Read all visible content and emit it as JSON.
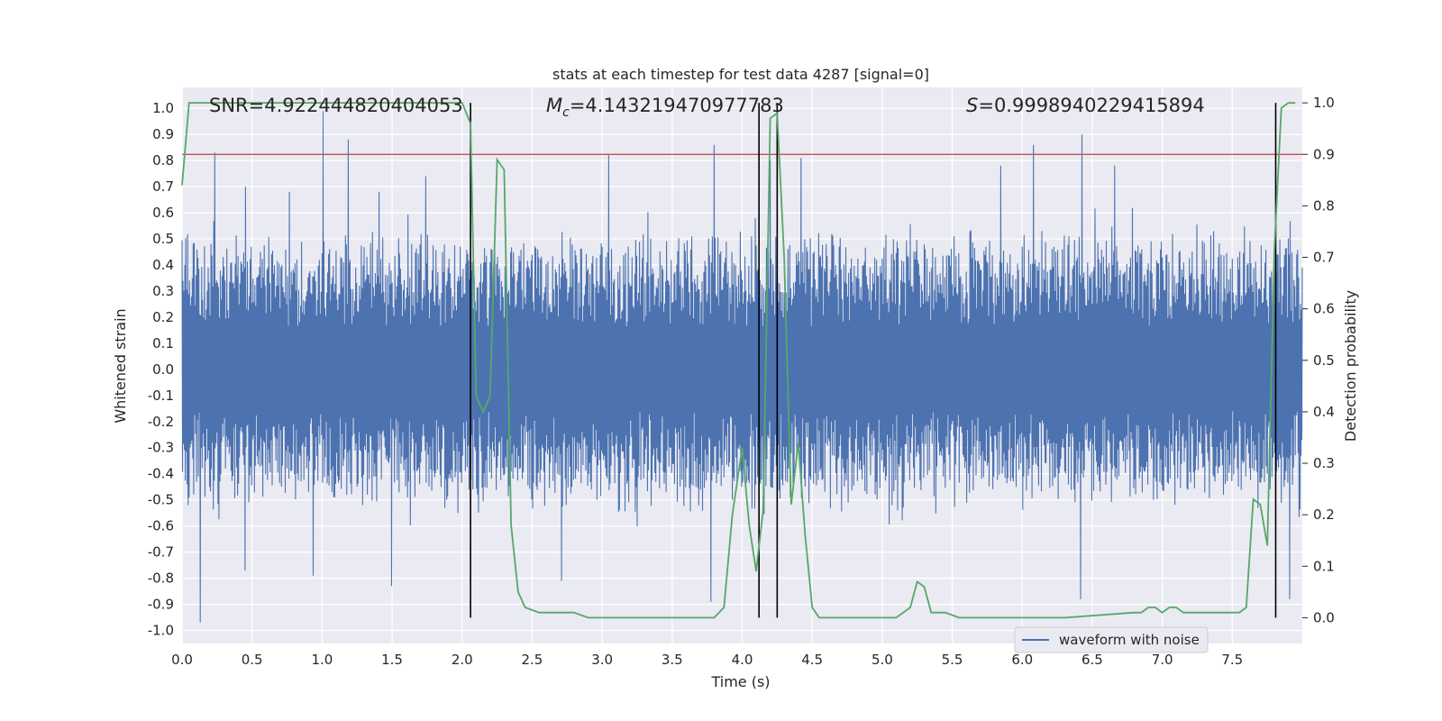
{
  "chart_data": {
    "type": "line",
    "title": "stats at each timestep for test data 4287 [signal=0]",
    "xlabel": "Time (s)",
    "ylabel_left": "Whitened strain",
    "ylabel_right": "Detection probability",
    "xlim": [
      0,
      8
    ],
    "ylim_left": [
      -1.05,
      1.08
    ],
    "ylim_right": [
      -0.05,
      1.03
    ],
    "x_ticks": [
      "0.0",
      "0.5",
      "1.0",
      "1.5",
      "2.0",
      "2.5",
      "3.0",
      "3.5",
      "4.0",
      "4.5",
      "5.0",
      "5.5",
      "6.0",
      "6.5",
      "7.0",
      "7.5"
    ],
    "y_left_ticks": [
      "1.0",
      "0.9",
      "0.8",
      "0.7",
      "0.6",
      "0.5",
      "0.4",
      "0.3",
      "0.2",
      "0.1",
      "0.0",
      "-0.1",
      "-0.2",
      "-0.3",
      "-0.4",
      "-0.5",
      "-0.6",
      "-0.7",
      "-0.8",
      "-0.9",
      "-1.0"
    ],
    "y_right_ticks": [
      "1.0",
      "0.9",
      "0.8",
      "0.7",
      "0.6",
      "0.5",
      "0.4",
      "0.3",
      "0.2",
      "0.1",
      "0.0"
    ],
    "annotations": {
      "snr": "SNR=4.922444820404053",
      "mc_symbol": "M",
      "mc_sub": "c",
      "mc_value": "=4.143219470977783",
      "s_symbol": "S",
      "s_value": "=0.9998940229415894"
    },
    "legend": [
      "waveform with noise"
    ],
    "legend_position": "lower right",
    "grid": true,
    "colors": {
      "background": "#EAEAF2",
      "waveform": "#4C72B0",
      "probability": "#55A868",
      "threshold": "#C44E52",
      "markers": "#000000"
    },
    "threshold_probability": 0.9,
    "vertical_markers_s": [
      2.06,
      4.12,
      4.25,
      7.81
    ],
    "waveform": {
      "name": "waveform with noise",
      "envelope_upper_typical": 0.45,
      "envelope_lower_typical": -0.45,
      "peaks": [
        {
          "x": 0.23,
          "y": 0.83
        },
        {
          "x": 0.45,
          "y": 0.7
        },
        {
          "x": 0.77,
          "y": 0.68
        },
        {
          "x": 1.01,
          "y": 0.99
        },
        {
          "x": 1.19,
          "y": 0.88
        },
        {
          "x": 1.41,
          "y": 0.68
        },
        {
          "x": 1.74,
          "y": 0.74
        },
        {
          "x": 3.05,
          "y": 0.82
        },
        {
          "x": 3.8,
          "y": 0.86
        },
        {
          "x": 4.2,
          "y": 0.8
        },
        {
          "x": 4.42,
          "y": 0.81
        },
        {
          "x": 5.85,
          "y": 0.78
        },
        {
          "x": 6.08,
          "y": 0.86
        },
        {
          "x": 6.43,
          "y": 0.9
        },
        {
          "x": 6.66,
          "y": 0.78
        }
      ],
      "troughs": [
        {
          "x": 0.13,
          "y": -0.97
        },
        {
          "x": 0.45,
          "y": -0.77
        },
        {
          "x": 0.94,
          "y": -0.79
        },
        {
          "x": 1.5,
          "y": -0.83
        },
        {
          "x": 2.71,
          "y": -0.81
        },
        {
          "x": 3.78,
          "y": -0.89
        },
        {
          "x": 6.42,
          "y": -0.88
        },
        {
          "x": 7.91,
          "y": -0.88
        }
      ]
    },
    "probability": {
      "name": "detection probability",
      "x": [
        0.0,
        0.05,
        0.1,
        0.3,
        0.6,
        1.0,
        1.5,
        1.9,
        2.0,
        2.06,
        2.1,
        2.15,
        2.2,
        2.25,
        2.3,
        2.35,
        2.4,
        2.45,
        2.55,
        2.7,
        2.8,
        2.9,
        3.1,
        3.5,
        3.8,
        3.87,
        3.93,
        4.0,
        4.05,
        4.1,
        4.15,
        4.2,
        4.25,
        4.3,
        4.35,
        4.4,
        4.45,
        4.5,
        4.55,
        4.6,
        4.7,
        4.8,
        4.9,
        5.0,
        5.1,
        5.15,
        5.2,
        5.25,
        5.3,
        5.35,
        5.45,
        5.55,
        5.7,
        5.8,
        6.0,
        6.3,
        6.8,
        6.85,
        6.9,
        6.95,
        7.0,
        7.05,
        7.1,
        7.15,
        7.2,
        7.3,
        7.4,
        7.55,
        7.6,
        7.65,
        7.7,
        7.75,
        7.8,
        7.85,
        7.9,
        7.95
      ],
      "y": [
        0.84,
        1.0,
        1.0,
        1.0,
        1.0,
        1.0,
        1.0,
        1.0,
        1.0,
        0.96,
        0.43,
        0.4,
        0.43,
        0.89,
        0.87,
        0.18,
        0.05,
        0.02,
        0.01,
        0.01,
        0.01,
        0.0,
        0.0,
        0.0,
        0.0,
        0.02,
        0.2,
        0.33,
        0.18,
        0.09,
        0.21,
        0.97,
        0.98,
        0.7,
        0.22,
        0.34,
        0.16,
        0.02,
        0.0,
        0.0,
        0.0,
        0.0,
        0.0,
        0.0,
        0.0,
        0.01,
        0.02,
        0.07,
        0.06,
        0.01,
        0.01,
        0.0,
        0.0,
        0.0,
        0.0,
        0.0,
        0.01,
        0.01,
        0.02,
        0.02,
        0.01,
        0.02,
        0.02,
        0.01,
        0.01,
        0.01,
        0.01,
        0.01,
        0.02,
        0.23,
        0.22,
        0.14,
        0.71,
        0.99,
        1.0,
        1.0
      ]
    }
  }
}
